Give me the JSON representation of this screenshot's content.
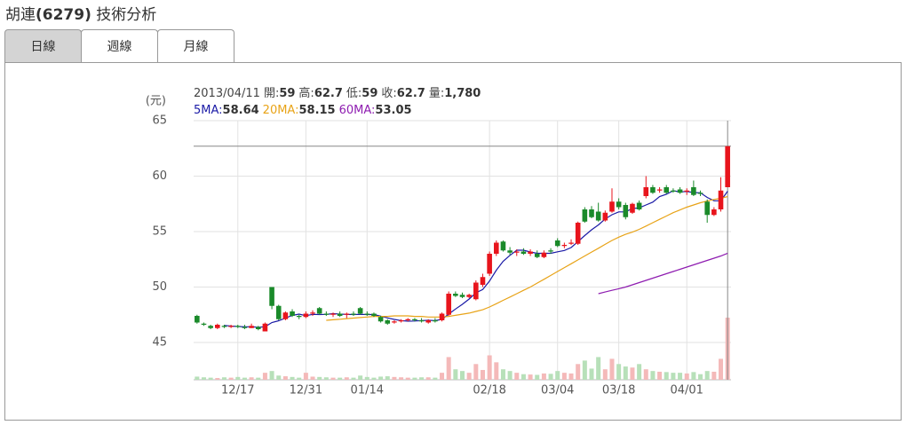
{
  "header": {
    "title": [
      "胡連",
      "(6279)",
      "技術分析"
    ]
  },
  "tabs": {
    "items": [
      "日線",
      "週線",
      "月線"
    ],
    "active": 0
  },
  "chart_data": {
    "type": "candlestick",
    "unit_label": "(元)",
    "date": "2013/04/11",
    "info_labels": [
      "開:",
      "高:",
      "低:",
      "收:",
      "量:"
    ],
    "last_volume_label": "1,780",
    "ylim": [
      41.64,
      65
    ],
    "yticks": [
      45,
      50,
      55,
      60,
      65
    ],
    "grid": true,
    "up_color": "#e8141c",
    "down_color": "#1a8a2a",
    "up_volume_color": "#f4b9b9",
    "down_volume_color": "#b7e0b9",
    "categories": [
      null,
      null,
      null,
      null,
      null,
      null,
      "12/17",
      null,
      null,
      null,
      null,
      null,
      null,
      null,
      null,
      null,
      "12/31",
      null,
      null,
      null,
      null,
      null,
      null,
      null,
      null,
      "01/14",
      null,
      null,
      null,
      null,
      null,
      null,
      null,
      null,
      null,
      null,
      null,
      null,
      null,
      null,
      null,
      null,
      null,
      "02/18",
      null,
      null,
      null,
      null,
      null,
      null,
      null,
      null,
      null,
      "03/04",
      null,
      null,
      null,
      null,
      null,
      null,
      null,
      null,
      "03/18",
      null,
      null,
      null,
      null,
      null,
      null,
      null,
      null,
      null,
      "04/01",
      null,
      null,
      null,
      null,
      null,
      null
    ],
    "ohlc": [
      [
        47.4,
        47.5,
        46.7,
        46.8
      ],
      [
        46.7,
        46.8,
        46.5,
        46.6
      ],
      [
        46.5,
        46.6,
        46.2,
        46.3
      ],
      [
        46.3,
        46.7,
        46.2,
        46.6
      ],
      [
        46.5,
        46.6,
        46.3,
        46.4
      ],
      [
        46.4,
        46.6,
        46.3,
        46.5
      ],
      [
        46.5,
        46.6,
        46.3,
        46.4
      ],
      [
        46.4,
        46.6,
        46.2,
        46.3
      ],
      [
        46.3,
        46.7,
        46.3,
        46.5
      ],
      [
        46.4,
        46.5,
        46.1,
        46.2
      ],
      [
        46.0,
        46.8,
        46.0,
        46.7
      ],
      [
        50.0,
        50.0,
        48.0,
        48.3
      ],
      [
        48.3,
        48.4,
        47.0,
        47.1
      ],
      [
        47.1,
        47.8,
        47.0,
        47.7
      ],
      [
        47.8,
        48.0,
        47.3,
        47.4
      ],
      [
        47.4,
        47.5,
        47.1,
        47.3
      ],
      [
        47.3,
        47.8,
        47.2,
        47.6
      ],
      [
        47.6,
        47.9,
        47.4,
        47.7
      ],
      [
        48.1,
        48.2,
        47.5,
        47.6
      ],
      [
        47.6,
        47.8,
        47.4,
        47.5
      ],
      [
        47.5,
        47.7,
        47.3,
        47.6
      ],
      [
        47.6,
        47.8,
        47.3,
        47.4
      ],
      [
        47.5,
        47.7,
        47.2,
        47.6
      ],
      [
        47.6,
        47.8,
        47.4,
        47.5
      ],
      [
        48.1,
        48.2,
        47.5,
        47.6
      ],
      [
        47.6,
        47.8,
        47.4,
        47.5
      ],
      [
        47.6,
        47.7,
        47.3,
        47.4
      ],
      [
        47.3,
        47.4,
        46.8,
        46.9
      ],
      [
        47.0,
        47.1,
        46.6,
        46.7
      ],
      [
        46.8,
        47.0,
        46.7,
        46.9
      ],
      [
        46.9,
        47.1,
        46.8,
        47.0
      ],
      [
        47.0,
        47.2,
        46.9,
        47.1
      ],
      [
        47.1,
        47.2,
        46.9,
        47.0
      ],
      [
        47.0,
        47.2,
        46.8,
        46.9
      ],
      [
        46.8,
        47.1,
        46.7,
        47.0
      ],
      [
        47.0,
        47.2,
        46.8,
        46.9
      ],
      [
        47.0,
        47.7,
        46.9,
        47.6
      ],
      [
        47.5,
        49.6,
        47.4,
        49.4
      ],
      [
        49.4,
        49.6,
        49.1,
        49.2
      ],
      [
        49.3,
        49.5,
        49.0,
        49.1
      ],
      [
        49.1,
        49.4,
        49.0,
        49.3
      ],
      [
        48.9,
        50.6,
        48.8,
        50.4
      ],
      [
        50.2,
        51.2,
        50.0,
        50.9
      ],
      [
        51.2,
        53.2,
        51.0,
        53.0
      ],
      [
        53.0,
        54.2,
        52.8,
        54.0
      ],
      [
        54.1,
        54.2,
        53.2,
        53.3
      ],
      [
        53.3,
        53.6,
        52.9,
        53.1
      ],
      [
        53.1,
        53.4,
        52.8,
        53.2
      ],
      [
        53.2,
        53.5,
        52.9,
        53.0
      ],
      [
        53.0,
        53.4,
        52.8,
        53.2
      ],
      [
        53.0,
        53.3,
        52.6,
        52.7
      ],
      [
        52.7,
        53.3,
        52.6,
        53.1
      ],
      [
        53.3,
        53.5,
        53.0,
        53.2
      ],
      [
        54.2,
        54.4,
        53.6,
        53.7
      ],
      [
        53.7,
        54.0,
        53.5,
        53.8
      ],
      [
        53.9,
        54.3,
        53.8,
        54.0
      ],
      [
        53.9,
        55.9,
        53.8,
        55.8
      ],
      [
        57.0,
        57.2,
        55.8,
        55.9
      ],
      [
        57.0,
        57.3,
        56.2,
        56.3
      ],
      [
        56.8,
        57.6,
        55.9,
        56.0
      ],
      [
        56.0,
        56.9,
        55.9,
        56.7
      ],
      [
        56.8,
        58.9,
        56.7,
        57.7
      ],
      [
        57.7,
        58.0,
        57.0,
        57.2
      ],
      [
        57.4,
        57.6,
        56.1,
        56.3
      ],
      [
        56.7,
        57.6,
        56.6,
        57.5
      ],
      [
        57.6,
        57.8,
        56.9,
        57.0
      ],
      [
        58.2,
        60.0,
        58.0,
        59.0
      ],
      [
        59.0,
        59.2,
        58.4,
        58.5
      ],
      [
        58.7,
        59.0,
        58.5,
        58.8
      ],
      [
        59.0,
        59.2,
        58.4,
        58.5
      ],
      [
        58.7,
        58.9,
        58.5,
        58.6
      ],
      [
        58.8,
        59.0,
        58.4,
        58.5
      ],
      [
        58.6,
        58.9,
        58.3,
        58.7
      ],
      [
        59.0,
        59.6,
        58.2,
        58.3
      ],
      [
        58.5,
        58.7,
        58.2,
        58.4
      ],
      [
        57.7,
        57.9,
        55.8,
        56.5
      ],
      [
        56.5,
        57.2,
        56.4,
        57.0
      ],
      [
        57.0,
        59.9,
        56.8,
        58.7
      ],
      [
        59,
        62.7,
        59,
        62.7
      ]
    ],
    "volume": [
      90,
      70,
      60,
      50,
      70,
      60,
      80,
      60,
      70,
      60,
      200,
      250,
      120,
      100,
      80,
      60,
      200,
      90,
      80,
      70,
      60,
      60,
      70,
      60,
      120,
      80,
      60,
      90,
      100,
      80,
      70,
      60,
      60,
      70,
      70,
      60,
      200,
      650,
      300,
      250,
      200,
      450,
      280,
      700,
      500,
      300,
      250,
      200,
      160,
      150,
      140,
      180,
      170,
      250,
      200,
      180,
      450,
      550,
      320,
      650,
      300,
      600,
      450,
      380,
      350,
      450,
      300,
      250,
      230,
      220,
      200,
      200,
      180,
      220,
      160,
      250,
      230,
      600,
      1780
    ],
    "series": [
      {
        "name": "5MA:",
        "color": "#1a1aa6",
        "values": [
          null,
          null,
          null,
          null,
          46.54,
          46.48,
          46.44,
          46.42,
          46.42,
          46.38,
          46.42,
          46.8,
          46.96,
          47.2,
          47.44,
          47.56,
          47.42,
          47.54,
          47.52,
          47.54,
          47.6,
          47.56,
          47.54,
          47.52,
          47.54,
          47.52,
          47.52,
          47.38,
          47.22,
          47.08,
          46.98,
          46.92,
          46.94,
          46.98,
          47.0,
          46.98,
          47.08,
          47.56,
          48.02,
          48.44,
          48.92,
          49.48,
          49.78,
          50.54,
          51.52,
          52.32,
          52.86,
          53.32,
          53.32,
          53.16,
          53.04,
          53.04,
          53.04,
          53.18,
          53.3,
          53.56,
          54.1,
          54.64,
          55.16,
          55.6,
          56.14,
          56.52,
          56.78,
          56.78,
          57.08,
          57.14,
          57.4,
          57.66,
          58.16,
          58.36,
          58.68,
          58.58,
          58.62,
          58.52,
          58.5,
          58.08,
          57.78,
          57.78,
          58.64
        ]
      },
      {
        "name": "20MA:",
        "color": "#e8a317",
        "values": [
          null,
          null,
          null,
          null,
          null,
          null,
          null,
          null,
          null,
          null,
          null,
          null,
          null,
          null,
          null,
          null,
          null,
          null,
          null,
          47.0,
          47.05,
          47.1,
          47.15,
          47.2,
          47.25,
          47.3,
          47.35,
          47.35,
          47.35,
          47.4,
          47.4,
          47.4,
          47.35,
          47.35,
          47.3,
          47.3,
          47.3,
          47.35,
          47.45,
          47.55,
          47.65,
          47.8,
          47.95,
          48.2,
          48.5,
          48.8,
          49.1,
          49.4,
          49.7,
          50.0,
          50.35,
          50.7,
          51.05,
          51.4,
          51.75,
          52.1,
          52.45,
          52.8,
          53.15,
          53.5,
          53.85,
          54.2,
          54.5,
          54.75,
          54.95,
          55.2,
          55.5,
          55.8,
          56.1,
          56.4,
          56.7,
          56.95,
          57.2,
          57.4,
          57.6,
          57.75,
          57.9,
          58.0,
          58.15
        ]
      },
      {
        "name": "60MA:",
        "color": "#8e1cb0",
        "values": [
          null,
          null,
          null,
          null,
          null,
          null,
          null,
          null,
          null,
          null,
          null,
          null,
          null,
          null,
          null,
          null,
          null,
          null,
          null,
          null,
          null,
          null,
          null,
          null,
          null,
          null,
          null,
          null,
          null,
          null,
          null,
          null,
          null,
          null,
          null,
          null,
          null,
          null,
          null,
          null,
          null,
          null,
          null,
          null,
          null,
          null,
          null,
          null,
          null,
          null,
          null,
          null,
          null,
          null,
          null,
          null,
          null,
          null,
          null,
          49.4,
          49.55,
          49.7,
          49.85,
          50.0,
          50.2,
          50.4,
          50.6,
          50.8,
          51.0,
          51.2,
          51.4,
          51.6,
          51.8,
          52.0,
          52.2,
          52.4,
          52.6,
          52.8,
          53.05
        ]
      }
    ]
  }
}
